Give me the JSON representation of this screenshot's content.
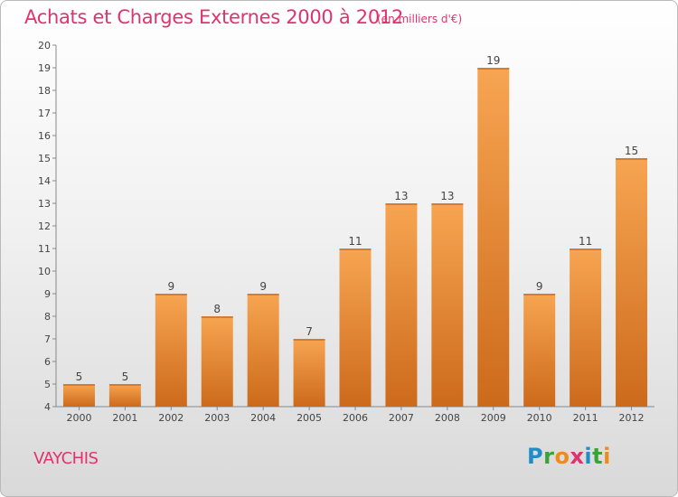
{
  "title": "Achats et Charges Externes 2000 à 2012",
  "subtitle": "(en milliers d'€)",
  "place": "VAYCHIS",
  "logo": {
    "letters": [
      "P",
      "r",
      "o",
      "x",
      "i",
      "t",
      "i"
    ],
    "colors": [
      "#1f8ec8",
      "#3aa23a",
      "#f08a1c",
      "#e0336e",
      "#1f8ec8",
      "#3aa23a",
      "#f08a1c"
    ]
  },
  "colors": {
    "bar_top": "#f7a552",
    "bar_bottom": "#cc6a1b",
    "text_accent": "#e0336e"
  },
  "chart_data": {
    "type": "bar",
    "title": "Achats et Charges Externes 2000 à 2012",
    "subtitle": "(en milliers d'€)",
    "xlabel": "",
    "ylabel": "",
    "categories": [
      "2000",
      "2001",
      "2002",
      "2003",
      "2004",
      "2005",
      "2006",
      "2007",
      "2008",
      "2009",
      "2010",
      "2011",
      "2012"
    ],
    "values": [
      5,
      5,
      9,
      8,
      9,
      7,
      11,
      13,
      13,
      19,
      9,
      11,
      15
    ],
    "ylim": [
      4,
      20
    ],
    "yticks": [
      4,
      5,
      6,
      7,
      8,
      9,
      10,
      11,
      12,
      13,
      14,
      15,
      16,
      17,
      18,
      19,
      20
    ],
    "grid": false,
    "data_labels": true
  }
}
